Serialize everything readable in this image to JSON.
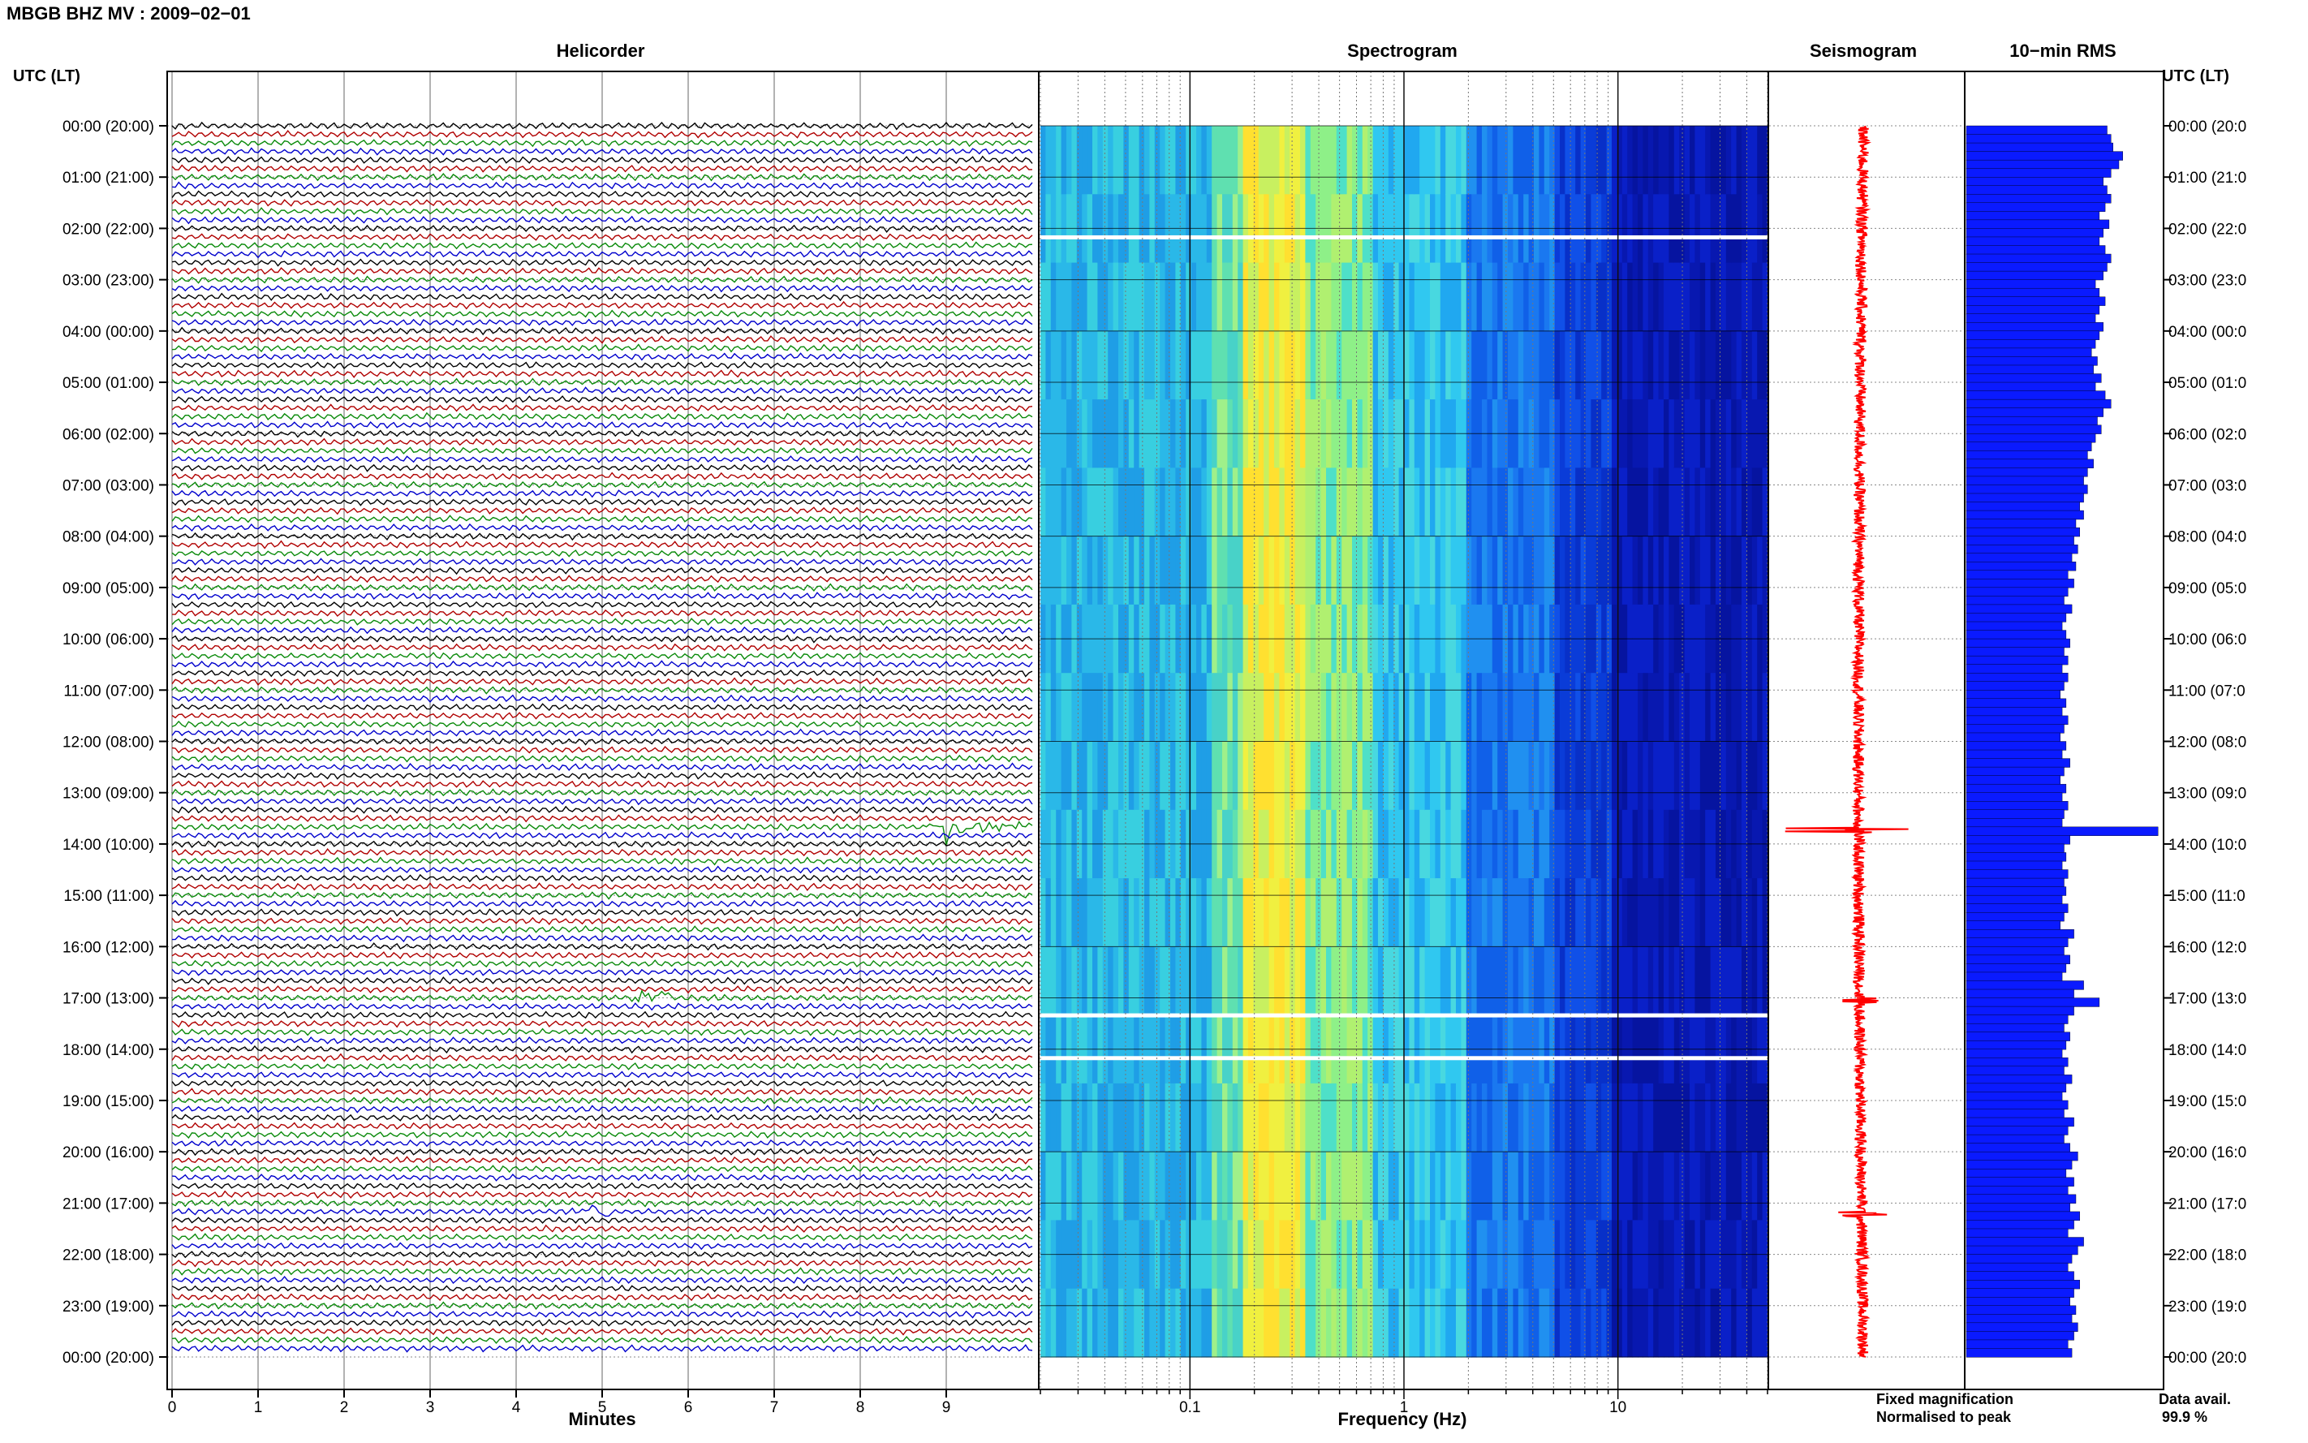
{
  "header": {
    "title": "MBGB BHZ MV : 2009−02−01",
    "utc_label_left": "UTC (LT)",
    "utc_label_right": "UTC (LT)"
  },
  "panels": {
    "helicorder": "Helicorder",
    "spectrogram": "Spectrogram",
    "seismogram": "Seismogram",
    "rms": "10−min RMS"
  },
  "axes": {
    "helicorder_xlabel": "Minutes",
    "spectrogram_xlabel": "Frequency (Hz)",
    "minute_ticks": [
      "0",
      "1",
      "2",
      "3",
      "4",
      "5",
      "6",
      "7",
      "8",
      "9"
    ],
    "freq_ticks": [
      "0.1",
      "1",
      "10"
    ]
  },
  "time_labels_left": [
    "00:00 (20:00)",
    "01:00 (21:00)",
    "02:00 (22:00)",
    "03:00 (23:00)",
    "04:00 (00:00)",
    "05:00 (01:00)",
    "06:00 (02:00)",
    "07:00 (03:00)",
    "08:00 (04:00)",
    "09:00 (05:00)",
    "10:00 (06:00)",
    "11:00 (07:00)",
    "12:00 (08:00)",
    "13:00 (09:00)",
    "14:00 (10:00)",
    "15:00 (11:00)",
    "16:00 (12:00)",
    "17:00 (13:00)",
    "18:00 (14:00)",
    "19:00 (15:00)",
    "20:00 (16:00)",
    "21:00 (17:00)",
    "22:00 (18:00)",
    "23:00 (19:00)",
    "00:00 (20:00)"
  ],
  "time_labels_right": [
    "00:00 (20:0",
    "01:00 (21:0",
    "02:00 (22:0",
    "03:00 (23:0",
    "04:00 (00:0",
    "05:00 (01:0",
    "06:00 (02:0",
    "07:00 (03:0",
    "08:00 (04:0",
    "09:00 (05:0",
    "10:00 (06:0",
    "11:00 (07:0",
    "12:00 (08:0",
    "13:00 (09:0",
    "14:00 (10:0",
    "15:00 (11:0",
    "16:00 (12:0",
    "17:00 (13:0",
    "18:00 (14:0",
    "19:00 (15:0",
    "20:00 (16:0",
    "21:00 (17:0",
    "22:00 (18:0",
    "23:00 (19:0",
    "00:00 (20:0"
  ],
  "footer": {
    "fixed_magnification": "Fixed magnification",
    "normalised_to_peak": "Normalised to peak",
    "data_avail_label": "Data avail.",
    "data_avail_value": "99.9 %"
  },
  "colors": {
    "trace_cycle": [
      "#000000",
      "#b00000",
      "#0a8a0a",
      "#0000cc"
    ],
    "fixed_magnification": "#1a1aff",
    "normalised_to_peak": "#ff0000",
    "rms_bar": "#0a1aff",
    "seismogram": "#ff0000"
  },
  "chart_data": {
    "type": "heatmap",
    "title": "MBGB BHZ MV : 2009−02−01",
    "helicorder": {
      "rows": 144,
      "row_minutes": 10,
      "x_range_minutes": [
        0,
        10
      ],
      "events": [
        {
          "row": 82,
          "minute": 9.0,
          "note": "large arrival"
        },
        {
          "row": 102,
          "minute": 5.6
        },
        {
          "row": 127,
          "minute": 4.9
        }
      ]
    },
    "spectrogram": {
      "x_scale": "log",
      "x_range_hz": [
        0.02,
        50
      ],
      "gap_rows": [
        13,
        104,
        109
      ]
    },
    "rms_10min": {
      "x_range": [
        0,
        1
      ],
      "values": [
        0.72,
        0.74,
        0.75,
        0.8,
        0.78,
        0.74,
        0.7,
        0.72,
        0.74,
        0.71,
        0.68,
        0.73,
        0.7,
        0.68,
        0.71,
        0.74,
        0.72,
        0.7,
        0.66,
        0.68,
        0.71,
        0.68,
        0.66,
        0.7,
        0.68,
        0.66,
        0.64,
        0.67,
        0.65,
        0.69,
        0.66,
        0.71,
        0.74,
        0.7,
        0.67,
        0.69,
        0.66,
        0.64,
        0.62,
        0.65,
        0.62,
        0.6,
        0.62,
        0.6,
        0.58,
        0.6,
        0.56,
        0.58,
        0.55,
        0.57,
        0.54,
        0.56,
        0.52,
        0.55,
        0.52,
        0.5,
        0.54,
        0.51,
        0.49,
        0.51,
        0.53,
        0.5,
        0.52,
        0.49,
        0.52,
        0.5,
        0.48,
        0.51,
        0.49,
        0.52,
        0.5,
        0.48,
        0.51,
        0.49,
        0.53,
        0.5,
        0.48,
        0.51,
        0.49,
        0.52,
        0.5,
        0.49,
        0.98,
        0.53,
        0.5,
        0.51,
        0.49,
        0.52,
        0.5,
        0.51,
        0.49,
        0.52,
        0.5,
        0.48,
        0.55,
        0.52,
        0.5,
        0.53,
        0.51,
        0.49,
        0.6,
        0.55,
        0.68,
        0.55,
        0.52,
        0.5,
        0.53,
        0.51,
        0.49,
        0.52,
        0.5,
        0.54,
        0.51,
        0.49,
        0.52,
        0.5,
        0.55,
        0.52,
        0.5,
        0.53,
        0.57,
        0.54,
        0.51,
        0.55,
        0.52,
        0.56,
        0.53,
        0.58,
        0.55,
        0.52,
        0.6,
        0.57,
        0.54,
        0.52,
        0.55,
        0.58,
        0.55,
        0.53,
        0.56,
        0.54,
        0.57,
        0.55,
        0.52,
        0.54
      ]
    }
  }
}
